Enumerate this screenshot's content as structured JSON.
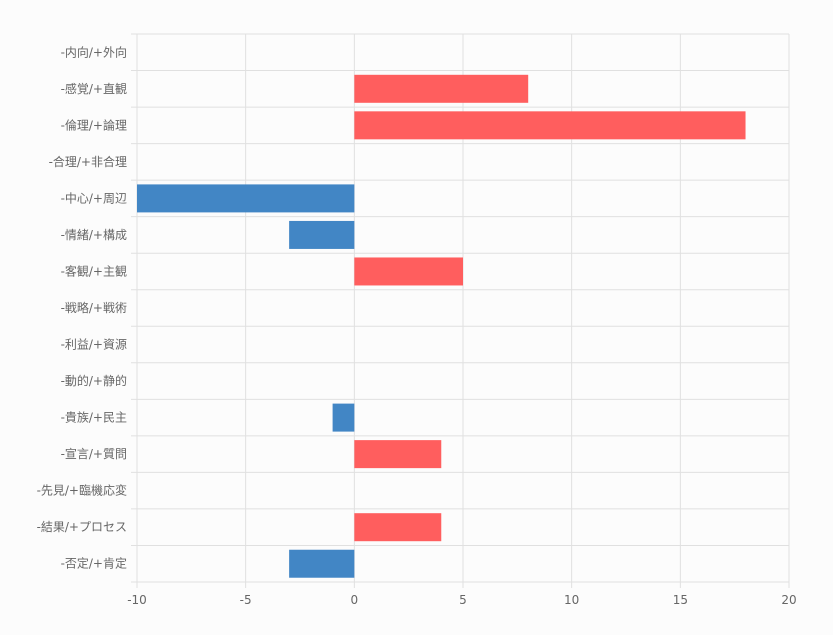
{
  "chart_data": {
    "type": "bar",
    "orientation": "horizontal",
    "categories": [
      "-内向/+外向",
      "-感覚/+直観",
      "-倫理/+論理",
      "-合理/+非合理",
      "-中心/+周辺",
      "-情緒/+構成",
      "-客観/+主観",
      "-戦略/+戦術",
      "-利益/+資源",
      "-動的/+静的",
      "-貴族/+民主",
      "-宣言/+質問",
      "-先見/+臨機応変",
      "-結果/+プロセス",
      "-否定/+肯定"
    ],
    "values": [
      0,
      8,
      18,
      0,
      -10,
      -3,
      5,
      0,
      0,
      0,
      -1,
      4,
      0,
      4,
      -3
    ],
    "xlim": [
      -10,
      20
    ],
    "xticks": [
      "-10",
      "-5",
      "0",
      "5",
      "10",
      "15",
      "20"
    ],
    "grid": true,
    "legend": "none",
    "colors": {
      "positive": "#ff5e5e",
      "negative": "#4286c5",
      "grid": "#e0e0e0"
    }
  }
}
